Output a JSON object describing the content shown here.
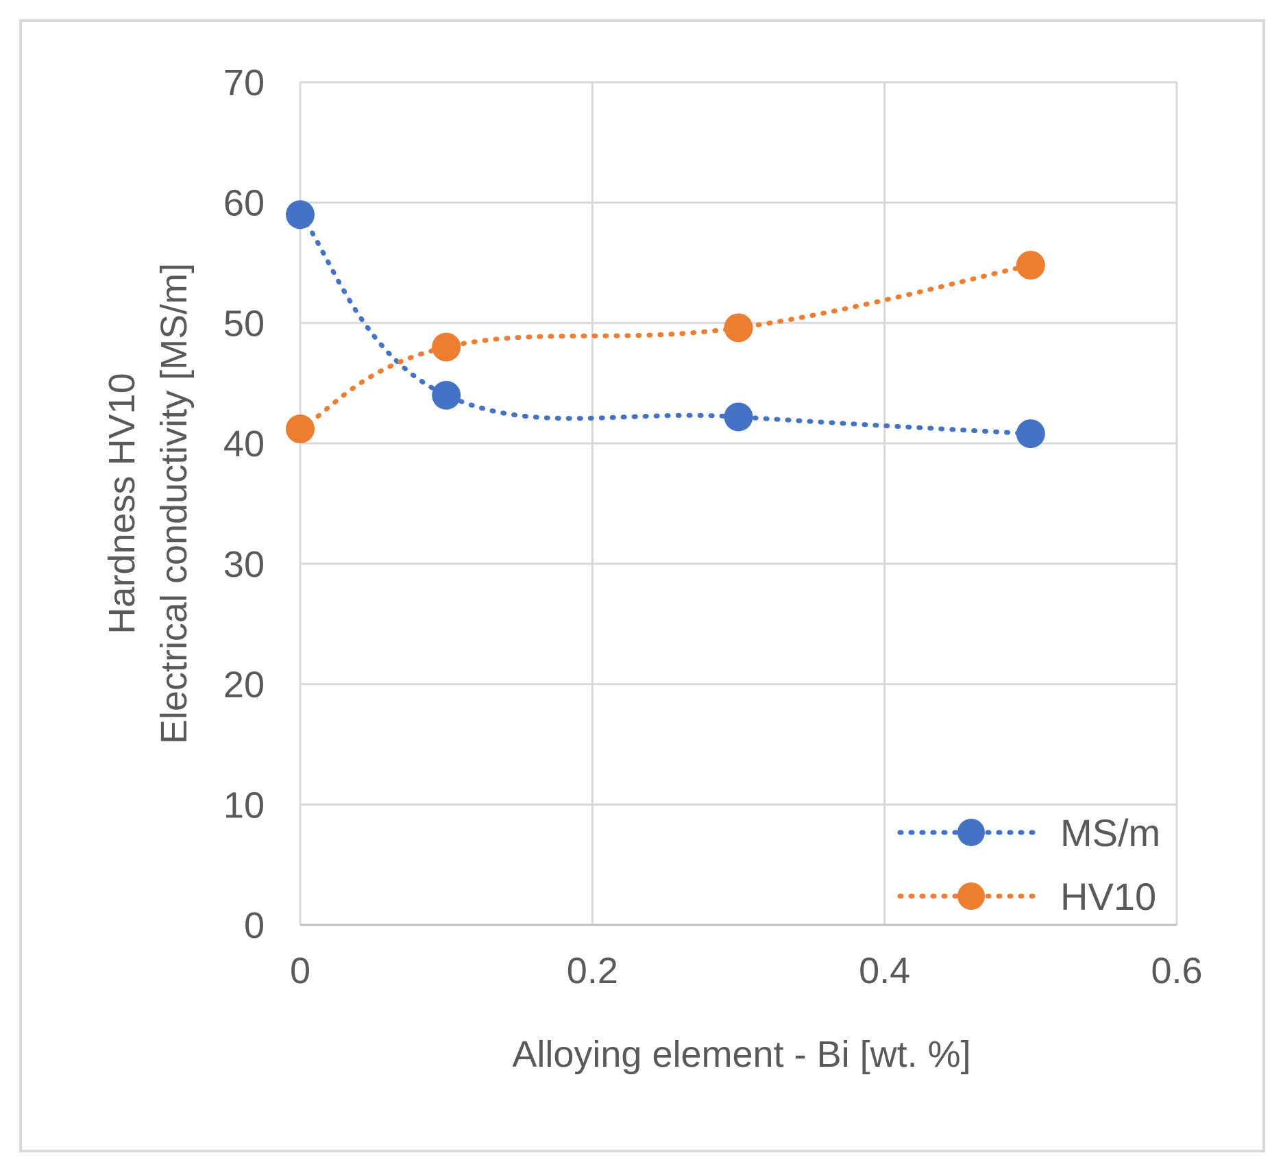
{
  "chart_data": {
    "type": "line",
    "title": "",
    "xlabel": "Alloying element - Bi [wt. %]",
    "ylabel_lines": [
      "Hardness HV10",
      "Electrical conductivity [MS/m]"
    ],
    "xlim": [
      0,
      0.6
    ],
    "ylim": [
      0,
      70
    ],
    "x_ticks": [
      0,
      0.2,
      0.4,
      0.6
    ],
    "x_tick_labels": [
      "0",
      "0.2",
      "0.4",
      "0.6"
    ],
    "y_ticks": [
      0,
      10,
      20,
      30,
      40,
      50,
      60,
      70
    ],
    "y_tick_labels": [
      "0",
      "10",
      "20",
      "30",
      "40",
      "50",
      "60",
      "70"
    ],
    "grid": true,
    "legend_position": "bottom-right",
    "series": [
      {
        "name": "MS/m",
        "color": "#4472c4",
        "line_style": "dotted",
        "smooth": true,
        "x": [
          0,
          0.1,
          0.3,
          0.5
        ],
        "values": [
          59,
          44,
          42.2,
          40.8
        ]
      },
      {
        "name": "HV10",
        "color": "#ed7d31",
        "line_style": "dotted",
        "smooth": true,
        "x": [
          0,
          0.1,
          0.3,
          0.5
        ],
        "values": [
          41.2,
          48,
          49.6,
          54.8
        ]
      }
    ]
  },
  "colors": {
    "grid": "#d9d9d9",
    "text": "#595959",
    "frame": "#d9d9d9"
  }
}
